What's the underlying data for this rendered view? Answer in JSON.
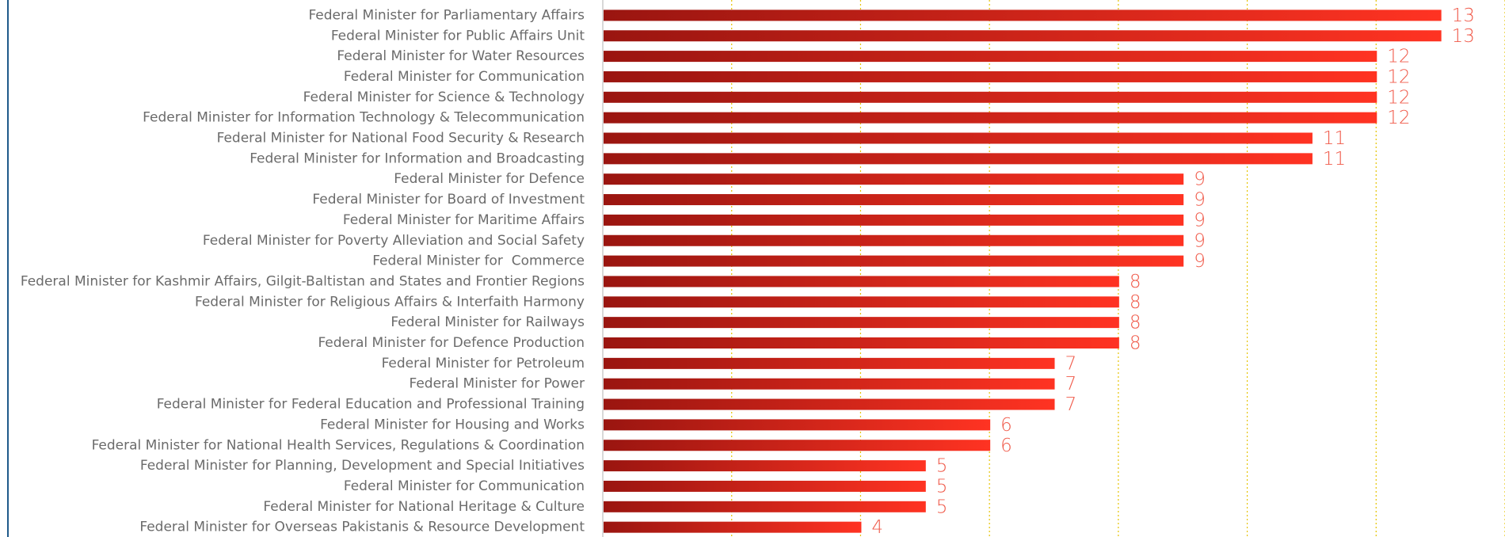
{
  "chart_data": {
    "type": "barh",
    "categories": [
      "Federal Minister for Parliamentary Affairs",
      "Federal Minister for Public Affairs Unit",
      "Federal Minister for Water Resources",
      "Federal Minister for Communication",
      "Federal Minister for Science & Technology",
      "Federal Minister for Information Technology & Telecommunication",
      "Federal Minister for National Food Security & Research",
      "Federal Minister for Information and Broadcasting",
      "Federal Minister for Defence",
      "Federal Minister for Board of Investment",
      "Federal Minister for Maritime Affairs",
      "Federal Minister for Poverty Alleviation and Social Safety",
      "Federal Minister for  Commerce",
      "Federal Minister for Kashmir Affairs, Gilgit-Baltistan and States and Frontier Regions",
      "Federal Minister for Religious Affairs & Interfaith Harmony",
      "Federal Minister for Railways",
      "Federal Minister for Defence Production",
      "Federal Minister for Petroleum",
      "Federal Minister for Power",
      "Federal Minister for Federal Education and Professional Training",
      "Federal Minister for Housing and Works",
      "Federal Minister for National Health Services, Regulations & Coordination",
      "Federal Minister for Planning, Development and Special Initiatives",
      "Federal Minister for Communication",
      "Federal Minister for National Heritage & Culture",
      "Federal Minister for Overseas Pakistanis & Resource Development"
    ],
    "values": [
      13,
      13,
      12,
      12,
      12,
      12,
      11,
      11,
      9,
      9,
      9,
      9,
      9,
      8,
      8,
      8,
      8,
      7,
      7,
      7,
      6,
      6,
      5,
      5,
      5,
      4
    ],
    "color": "#ff3322",
    "xlim": [
      0,
      14
    ],
    "xticks": [
      0,
      2,
      4,
      6,
      8,
      10,
      12,
      14
    ],
    "grid": true
  }
}
